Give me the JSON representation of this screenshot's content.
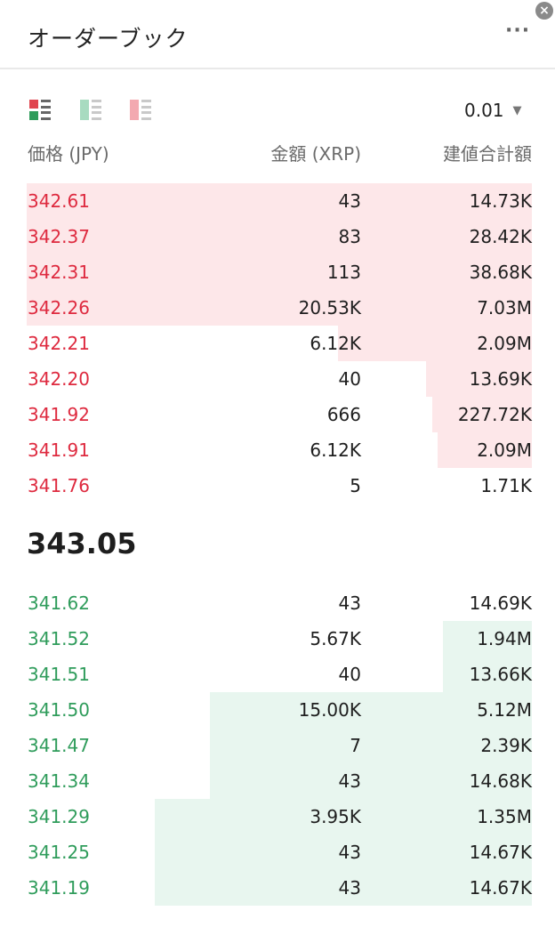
{
  "header": {
    "title": "オーダーブック",
    "more_label": "···",
    "close_label": "×"
  },
  "toolbar": {
    "modes": [
      "both-view-icon",
      "bids-view-icon",
      "asks-view-icon"
    ],
    "precision": "0.01"
  },
  "columns": {
    "price": "価格 (JPY)",
    "amount": "金額 (XRP)",
    "total": "建値合計額"
  },
  "colors": {
    "ask": "#de2a3f",
    "bid": "#2f9c5b",
    "ask_bar": "#fde7e9",
    "bid_bar": "#e8f6ef"
  },
  "asks": [
    {
      "price": "342.61",
      "amount": "43",
      "total": "14.73K",
      "depth": 0.91
    },
    {
      "price": "342.37",
      "amount": "83",
      "total": "28.42K",
      "depth": 0.91
    },
    {
      "price": "342.31",
      "amount": "113",
      "total": "38.68K",
      "depth": 0.91
    },
    {
      "price": "342.26",
      "amount": "20.53K",
      "total": "7.03M",
      "depth": 0.91
    },
    {
      "price": "342.21",
      "amount": "6.12K",
      "total": "2.09M",
      "depth": 0.35
    },
    {
      "price": "342.20",
      "amount": "40",
      "total": "13.69K",
      "depth": 0.19
    },
    {
      "price": "341.92",
      "amount": "666",
      "total": "227.72K",
      "depth": 0.18
    },
    {
      "price": "341.91",
      "amount": "6.12K",
      "total": "2.09M",
      "depth": 0.17
    },
    {
      "price": "341.76",
      "amount": "5",
      "total": "1.71K",
      "depth": 0
    }
  ],
  "last_price": "343.05",
  "bids": [
    {
      "price": "341.62",
      "amount": "43",
      "total": "14.69K",
      "depth": 0
    },
    {
      "price": "341.52",
      "amount": "5.67K",
      "total": "1.94M",
      "depth": 0.16
    },
    {
      "price": "341.51",
      "amount": "40",
      "total": "13.66K",
      "depth": 0.16
    },
    {
      "price": "341.50",
      "amount": "15.00K",
      "total": "5.12M",
      "depth": 0.58
    },
    {
      "price": "341.47",
      "amount": "7",
      "total": "2.39K",
      "depth": 0.58
    },
    {
      "price": "341.34",
      "amount": "43",
      "total": "14.68K",
      "depth": 0.58
    },
    {
      "price": "341.29",
      "amount": "3.95K",
      "total": "1.35M",
      "depth": 0.68
    },
    {
      "price": "341.25",
      "amount": "43",
      "total": "14.67K",
      "depth": 0.68
    },
    {
      "price": "341.19",
      "amount": "43",
      "total": "14.67K",
      "depth": 0.68
    }
  ]
}
